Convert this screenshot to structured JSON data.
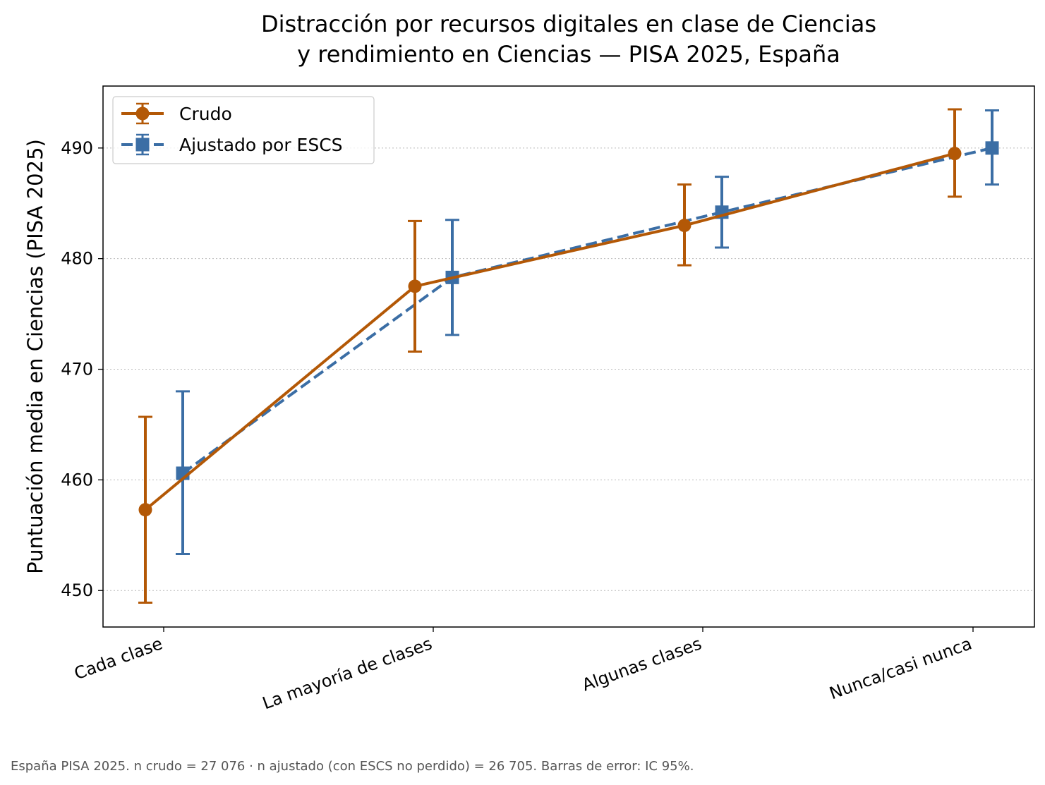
{
  "chart_data": {
    "type": "line",
    "title_lines": [
      "Distracción por recursos digitales en clase de Ciencias",
      "y rendimiento en Ciencias — PISA 2025, España"
    ],
    "xlabel": "",
    "ylabel": "Puntuación media en Ciencias (PISA 2025)",
    "categories": [
      "Cada clase",
      "La mayoría de clases",
      "Algunas clases",
      "Nunca/casi nunca"
    ],
    "ylim": [
      446.7,
      495.6
    ],
    "yticks": [
      450,
      460,
      470,
      480,
      490
    ],
    "ytick_labels": [
      "450",
      "460",
      "470",
      "480",
      "490"
    ],
    "grid": "horizontal dotted",
    "legend_position": "top-left",
    "error_bars": "IC 95%",
    "series": [
      {
        "name": "Crudo",
        "color": "#b35806",
        "marker": "circle",
        "line_style": "solid",
        "values": [
          457.3,
          477.5,
          483.0,
          489.5
        ],
        "ci_low": [
          448.9,
          471.6,
          479.4,
          485.6
        ],
        "ci_high": [
          465.7,
          483.4,
          486.7,
          493.5
        ]
      },
      {
        "name": "Ajustado por ESCS",
        "color": "#3b6ea5",
        "marker": "square",
        "line_style": "dashed",
        "values": [
          460.6,
          478.3,
          484.2,
          490.0
        ],
        "ci_low": [
          453.3,
          473.1,
          481.0,
          486.7
        ],
        "ci_high": [
          468.0,
          483.5,
          487.4,
          493.4
        ]
      }
    ]
  },
  "footnote": "España  PISA 2025. n crudo = 27 076 · n ajustado (con ESCS no perdido) = 26 705. Barras de error: IC 95%."
}
